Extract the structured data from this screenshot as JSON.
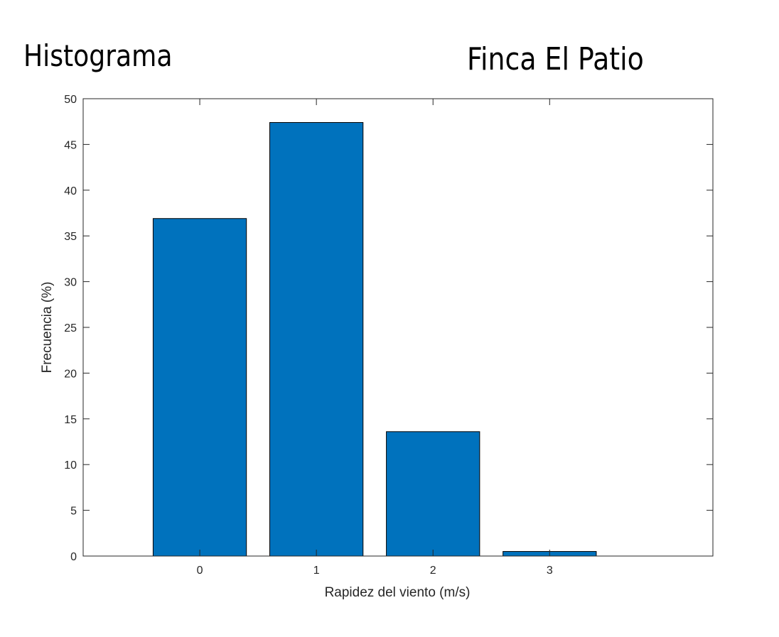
{
  "titles": {
    "left": "Histograma",
    "right": "Finca El Patio"
  },
  "chart_data": {
    "type": "bar",
    "categories": [
      "0",
      "1",
      "2",
      "3"
    ],
    "x": [
      0,
      1,
      2,
      3
    ],
    "values": [
      36.9,
      47.4,
      13.6,
      0.5
    ],
    "xlabel": "Rapidez del viento (m/s)",
    "ylabel": "Frecuencia (%)",
    "xlim": [
      -1,
      4.4
    ],
    "ylim": [
      0,
      50
    ],
    "yticks": [
      0,
      5,
      10,
      15,
      20,
      25,
      30,
      35,
      40,
      45,
      50
    ],
    "xticks": [
      0,
      1,
      2,
      3
    ],
    "bar_width": 0.8,
    "bar_color": "#0072BD",
    "bar_edge_color": "#000000",
    "grid": false,
    "box": true
  }
}
